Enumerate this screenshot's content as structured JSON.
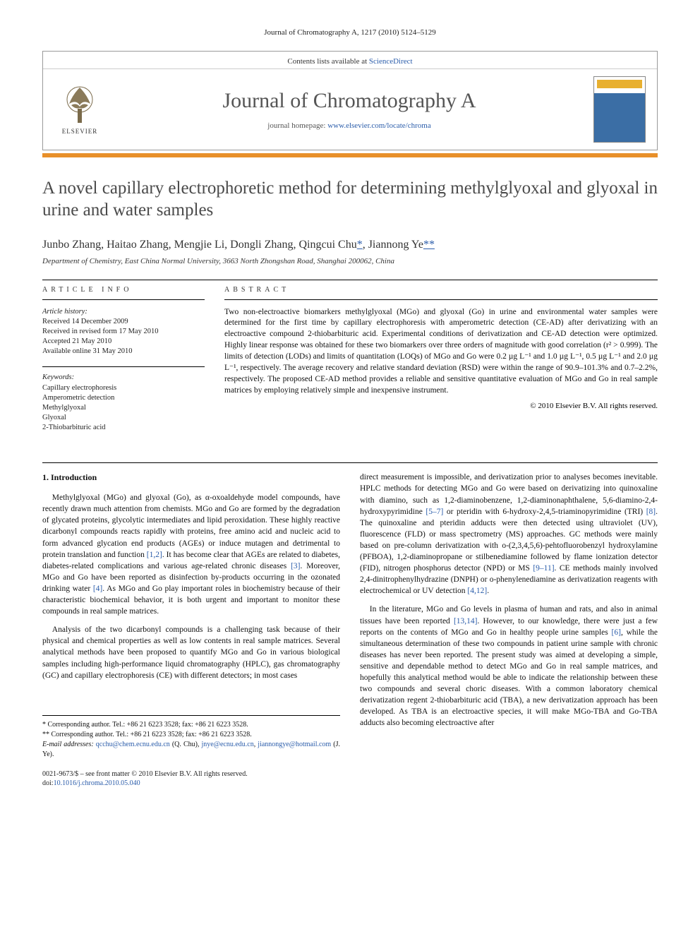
{
  "running_head": "Journal of Chromatography A, 1217 (2010) 5124–5129",
  "header": {
    "contents_prefix": "Contents lists available at ",
    "contents_link": "ScienceDirect",
    "journal_name": "Journal of Chromatography A",
    "homepage_prefix": "journal homepage: ",
    "homepage_url": "www.elsevier.com/locate/chroma",
    "publisher_name": "ELSEVIER"
  },
  "title": "A novel capillary electrophoretic method for determining methylglyoxal and glyoxal in urine and water samples",
  "authors_html": "Junbo Zhang, Haitao Zhang, Mengjie Li, Dongli Zhang, Qingcui Chu",
  "corr1": "*",
  "author_last": ", Jiannong Ye",
  "corr2": "**",
  "affiliation": "Department of Chemistry, East China Normal University, 3663 North Zhongshan Road, Shanghai 200062, China",
  "article_info": {
    "head": "ARTICLE INFO",
    "history_label": "Article history:",
    "received": "Received 14 December 2009",
    "revised": "Received in revised form 17 May 2010",
    "accepted": "Accepted 21 May 2010",
    "online": "Available online 31 May 2010",
    "keywords_label": "Keywords:",
    "keywords": [
      "Capillary electrophoresis",
      "Amperometric detection",
      "Methylglyoxal",
      "Glyoxal",
      "2-Thiobarbituric acid"
    ]
  },
  "abstract": {
    "head": "ABSTRACT",
    "text": "Two non-electroactive biomarkers methylglyoxal (MGo) and glyoxal (Go) in urine and environmental water samples were determined for the first time by capillary electrophoresis with amperometric detection (CE-AD) after derivatizing with an electroactive compound 2-thiobarbituric acid. Experimental conditions of derivatization and CE-AD detection were optimized. Highly linear response was obtained for these two biomarkers over three orders of magnitude with good correlation (r² > 0.999). The limits of detection (LODs) and limits of quantitation (LOQs) of MGo and Go were 0.2 µg L⁻¹ and 1.0 µg L⁻¹, 0.5 µg L⁻¹ and 2.0 µg L⁻¹, respectively. The average recovery and relative standard deviation (RSD) were within the range of 90.9–101.3% and 0.7–2.2%, respectively. The proposed CE-AD method provides a reliable and sensitive quantitative evaluation of MGo and Go in real sample matrices by employing relatively simple and inexpensive instrument.",
    "copyright": "© 2010 Elsevier B.V. All rights reserved."
  },
  "body": {
    "section_number": "1.",
    "section_title": "Introduction",
    "left_paragraphs": [
      "Methylglyoxal (MGo) and glyoxal (Go), as α-oxoaldehyde model compounds, have recently drawn much attention from chemists. MGo and Go are formed by the degradation of glycated proteins, glycolytic intermediates and lipid peroxidation. These highly reactive dicarbonyl compounds reacts rapidly with proteins, free amino acid and nucleic acid to form advanced glycation end products (AGEs) or induce mutagen and detrimental to protein translation and function [1,2]. It has become clear that AGEs are related to diabetes, diabetes-related complications and various age-related chronic diseases [3]. Moreover, MGo and Go have been reported as disinfection by-products occurring in the ozonated drinking water [4]. As MGo and Go play important roles in biochemistry because of their characteristic biochemical behavior, it is both urgent and important to monitor these compounds in real sample matrices.",
      "Analysis of the two dicarbonyl compounds is a challenging task because of their physical and chemical properties as well as low contents in real sample matrices. Several analytical methods have been proposed to quantify MGo and Go in various biological samples including high-performance liquid chromatography (HPLC), gas chromatography (GC) and capillary electrophoresis (CE) with different detectors; in most cases"
    ],
    "right_paragraphs": [
      "direct measurement is impossible, and derivatization prior to analyses becomes inevitable. HPLC methods for detecting MGo and Go were based on derivatizing into quinoxaline with diamino, such as 1,2-diaminobenzene, 1,2-diaminonaphthalene, 5,6-diamino-2,4-hydroxypyrimidine [5–7] or pteridin with 6-hydroxy-2,4,5-triaminopyrimidine (TRI) [8]. The quinoxaline and pteridin adducts were then detected using ultraviolet (UV), fluorescence (FLD) or mass spectrometry (MS) approaches. GC methods were mainly based on pre-column derivatization with o-(2,3,4,5,6)-pehtofluorobenzyl hydroxylamine (PFBOA), 1,2-diaminopropane or stilbenediamine followed by flame ionization detector (FID), nitrogen phosphorus detector (NPD) or MS [9–11]. CE methods mainly involved 2,4-dinitrophenylhydrazine (DNPH) or o-phenylenediamine as derivatization reagents with electrochemical or UV detection [4,12].",
      "In the literature, MGo and Go levels in plasma of human and rats, and also in animal tissues have been reported [13,14]. However, to our knowledge, there were just a few reports on the contents of MGo and Go in healthy people urine samples [6], while the simultaneous determination of these two compounds in patient urine sample with chronic diseases has never been reported. The present study was aimed at developing a simple, sensitive and dependable method to detect MGo and Go in real sample matrices, and hopefully this analytical method would be able to indicate the relationship between these two compounds and several choric diseases. With a common laboratory chemical derivatization regent 2-thiobarbituric acid (TBA), a new derivatization approach has been developed. As TBA is an electroactive species, it will make MGo-TBA and Go-TBA adducts also becoming electroactive after"
    ],
    "refs": {
      "r12": "[1,2]",
      "r3": "[3]",
      "r4": "[4]",
      "r57": "[5–7]",
      "r8": "[8]",
      "r911": "[9–11]",
      "r412": "[4,12]",
      "r1314": "[13,14]",
      "r6": "[6]"
    }
  },
  "footnotes": {
    "corr1": "* Corresponding author. Tel.: +86 21 6223 3528; fax: +86 21 6223 3528.",
    "corr2": "** Corresponding author. Tel.: +86 21 6223 3528; fax: +86 21 6223 3528.",
    "email_label": "E-mail addresses:",
    "email1": "qcchu@chem.ecnu.edu.cn",
    "email1_who": " (Q. Chu), ",
    "email2": "jnye@ecnu.edu.cn",
    "email_sep": ", ",
    "email3": "jiannongye@hotmail.com",
    "email3_who": " (J. Ye)."
  },
  "footer": {
    "line1": "0021-9673/$ – see front matter © 2010 Elsevier B.V. All rights reserved.",
    "doi_prefix": "doi:",
    "doi": "10.1016/j.chroma.2010.05.040"
  },
  "colors": {
    "link": "#2a5caa",
    "orange_bar": "#e8902a",
    "title_gray": "#4a4a4a",
    "journal_gray": "#555"
  },
  "typography": {
    "title_fontsize": 25,
    "journal_name_fontsize": 30,
    "body_fontsize": 11.5,
    "abstract_fontsize": 11.5,
    "footnote_fontsize": 10,
    "running_head_fontsize": 11
  }
}
